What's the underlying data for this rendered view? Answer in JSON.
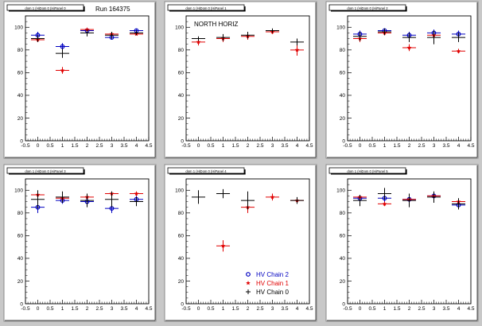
{
  "colors": {
    "background": "#c8c8c8",
    "pad": "#ffffff",
    "chain0": "#000000",
    "chain1": "#e00000",
    "chain2": "#0000c0"
  },
  "chart_data": [
    {
      "type": "scatter",
      "title": "dom 1 (HiDom 0 (HiPanel 0",
      "annotation": "Run 164375",
      "xlim": [
        -0.5,
        4.5
      ],
      "ylim": [
        0,
        110
      ],
      "xticks": [
        "-0.5",
        "0",
        "0.5",
        "1",
        "1.5",
        "2",
        "2.5",
        "3",
        "3.5",
        "4",
        "4.5"
      ],
      "yticks": [
        "0",
        "20",
        "40",
        "60",
        "80",
        "100"
      ],
      "series": [
        {
          "name": "HV Chain 2",
          "marker": "circle",
          "x": [
            0,
            1,
            2,
            3,
            4
          ],
          "y": [
            93,
            83,
            97,
            91,
            97
          ],
          "yerr": [
            3,
            3,
            2,
            2,
            1
          ]
        },
        {
          "name": "HV Chain 1",
          "marker": "star",
          "x": [
            0,
            1,
            2,
            3,
            4
          ],
          "y": [
            89,
            62,
            98,
            94,
            94
          ],
          "yerr": [
            2,
            3,
            1,
            2,
            1
          ]
        },
        {
          "name": "HV Chain 0",
          "marker": "cross",
          "x": [
            0,
            1,
            2,
            3,
            4
          ],
          "y": [
            90,
            77,
            95,
            93,
            95
          ],
          "yerr": [
            3,
            4,
            3,
            3,
            2
          ]
        }
      ]
    },
    {
      "type": "scatter",
      "title": "dom 1 (HiDom 0 (HiPanel 1",
      "annotation": "NORTH HORIZ",
      "xlim": [
        -0.5,
        4.5
      ],
      "ylim": [
        0,
        110
      ],
      "xticks": [
        "-0.5",
        "0",
        "0.5",
        "1",
        "1.5",
        "2",
        "2.5",
        "3",
        "3.5",
        "4",
        "4.5"
      ],
      "yticks": [
        "0",
        "20",
        "40",
        "60",
        "80",
        "100"
      ],
      "series": [
        {
          "name": "HV Chain 2",
          "marker": "circle",
          "x": [],
          "y": [],
          "yerr": []
        },
        {
          "name": "HV Chain 1",
          "marker": "star",
          "x": [
            0,
            1,
            2,
            3,
            4
          ],
          "y": [
            87,
            90,
            92,
            96,
            80
          ],
          "yerr": [
            3,
            3,
            3,
            2,
            5
          ]
        },
        {
          "name": "HV Chain 0",
          "marker": "cross",
          "x": [
            0,
            1,
            2,
            3,
            4
          ],
          "y": [
            90,
            91,
            93,
            97,
            87
          ],
          "yerr": [
            2,
            3,
            3,
            2,
            3
          ]
        }
      ]
    },
    {
      "type": "scatter",
      "title": "dom 1 (HiDom 0 (HiPanel 2",
      "annotation": "",
      "xlim": [
        -0.5,
        4.5
      ],
      "ylim": [
        0,
        110
      ],
      "xticks": [
        "-0.5",
        "0",
        "0.5",
        "1",
        "1.5",
        "2",
        "2.5",
        "3",
        "3.5",
        "4",
        "4.5"
      ],
      "yticks": [
        "0",
        "20",
        "40",
        "60",
        "80",
        "100"
      ],
      "series": [
        {
          "name": "HV Chain 2",
          "marker": "circle",
          "x": [
            0,
            1,
            2,
            3,
            4
          ],
          "y": [
            94,
            97,
            93,
            95,
            94
          ],
          "yerr": [
            3,
            2,
            3,
            3,
            3
          ]
        },
        {
          "name": "HV Chain 1",
          "marker": "star",
          "x": [
            0,
            1,
            2,
            3,
            4
          ],
          "y": [
            90,
            95,
            82,
            93,
            79
          ],
          "yerr": [
            3,
            2,
            3,
            3,
            2
          ]
        },
        {
          "name": "HV Chain 0",
          "marker": "cross",
          "x": [
            0,
            1,
            2,
            3,
            4
          ],
          "y": [
            92,
            96,
            91,
            91,
            91
          ],
          "yerr": [
            4,
            3,
            4,
            6,
            4
          ]
        }
      ]
    },
    {
      "type": "scatter",
      "title": "dom 1 (HiDom 0 (HiPanel 3",
      "annotation": "",
      "xlim": [
        -0.5,
        4.5
      ],
      "ylim": [
        0,
        110
      ],
      "xticks": [
        "-0.5",
        "0",
        "0.5",
        "1",
        "1.5",
        "2",
        "2.5",
        "3",
        "3.5",
        "4",
        "4.5"
      ],
      "yticks": [
        "0",
        "20",
        "40",
        "60",
        "80",
        "100"
      ],
      "series": [
        {
          "name": "HV Chain 2",
          "marker": "circle",
          "x": [
            0,
            1,
            2,
            3,
            4
          ],
          "y": [
            85,
            91,
            90,
            84,
            92
          ],
          "yerr": [
            5,
            3,
            4,
            4,
            3
          ]
        },
        {
          "name": "HV Chain 1",
          "marker": "star",
          "x": [
            0,
            1,
            2,
            3,
            4
          ],
          "y": [
            96,
            93,
            94,
            97,
            97
          ],
          "yerr": [
            2,
            2,
            2,
            2,
            2
          ]
        },
        {
          "name": "HV Chain 0",
          "marker": "cross",
          "x": [
            0,
            1,
            2,
            3,
            4
          ],
          "y": [
            92,
            94,
            91,
            92,
            90
          ],
          "yerr": [
            8,
            5,
            6,
            7,
            4
          ]
        }
      ]
    },
    {
      "type": "scatter",
      "title": "dom 1 (HiDom 0 (HiPanel 4",
      "annotation": "",
      "xlim": [
        -0.5,
        4.5
      ],
      "ylim": [
        0,
        110
      ],
      "xticks": [
        "-0.5",
        "0",
        "0.5",
        "1",
        "1.5",
        "2",
        "2.5",
        "3",
        "3.5",
        "4",
        "4.5"
      ],
      "yticks": [
        "0",
        "20",
        "40",
        "60",
        "80",
        "100"
      ],
      "legend": {
        "placement": "bottom-right",
        "entries": [
          "HV Chain 2",
          "HV Chain 1",
          "HV Chain 0"
        ]
      },
      "series": [
        {
          "name": "HV Chain 2",
          "marker": "circle",
          "x": [],
          "y": [],
          "yerr": []
        },
        {
          "name": "HV Chain 1",
          "marker": "star",
          "x": [
            1,
            2,
            3,
            4
          ],
          "y": [
            51,
            85,
            94,
            91
          ],
          "yerr": [
            5,
            5,
            3,
            2
          ]
        },
        {
          "name": "HV Chain 0",
          "marker": "cross",
          "x": [
            0,
            1,
            2,
            4
          ],
          "y": [
            94,
            97,
            91,
            91
          ],
          "yerr": [
            6,
            4,
            8,
            3
          ]
        }
      ]
    },
    {
      "type": "scatter",
      "title": "dom 1 (HiDom 0 (HiPanel 5",
      "annotation": "",
      "xlim": [
        -0.5,
        4.5
      ],
      "ylim": [
        0,
        110
      ],
      "xticks": [
        "-0.5",
        "0",
        "0.5",
        "1",
        "1.5",
        "2",
        "2.5",
        "3",
        "3.5",
        "4",
        "4.5"
      ],
      "yticks": [
        "0",
        "20",
        "40",
        "60",
        "80",
        "100"
      ],
      "series": [
        {
          "name": "HV Chain 2",
          "marker": "circle",
          "x": [
            0,
            1,
            2,
            3,
            4
          ],
          "y": [
            93,
            93,
            92,
            95,
            87
          ],
          "yerr": [
            3,
            3,
            3,
            2,
            3
          ]
        },
        {
          "name": "HV Chain 1",
          "marker": "star",
          "x": [
            0,
            1,
            2,
            3,
            4
          ],
          "y": [
            94,
            88,
            92,
            95,
            90
          ],
          "yerr": [
            2,
            2,
            2,
            2,
            2
          ]
        },
        {
          "name": "HV Chain 0",
          "marker": "cross",
          "x": [
            0,
            1,
            2,
            3,
            4
          ],
          "y": [
            91,
            97,
            91,
            94,
            88
          ],
          "yerr": [
            5,
            5,
            6,
            5,
            5
          ]
        }
      ]
    }
  ]
}
